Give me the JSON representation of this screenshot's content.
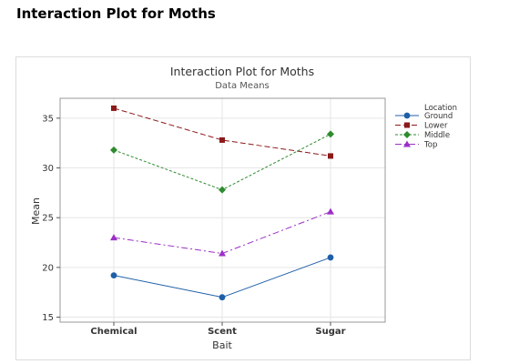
{
  "page_heading": "Interaction Plot for Moths",
  "chart_data": {
    "type": "line",
    "title": "Interaction Plot for Moths",
    "subtitle": "Data Means",
    "xlabel": "Bait",
    "ylabel": "Mean",
    "categories": [
      "Chemical",
      "Scent",
      "Sugar"
    ],
    "yticks": [
      15,
      20,
      25,
      30,
      35
    ],
    "ylim": [
      14.5,
      37
    ],
    "grid": true,
    "legend": {
      "title": "Location",
      "placement": "right"
    },
    "series": [
      {
        "name": "Ground",
        "values": [
          19.2,
          17.0,
          21.0
        ],
        "color": "#1f5fa8",
        "marker": "circle",
        "dash": "solid"
      },
      {
        "name": "Lower",
        "values": [
          36.0,
          32.8,
          31.2
        ],
        "color": "#8b1a1a",
        "marker": "square",
        "dash": "dashed"
      },
      {
        "name": "Middle",
        "values": [
          31.8,
          27.8,
          33.4
        ],
        "color": "#2e8b2e",
        "marker": "diamond",
        "dash": "dotted"
      },
      {
        "name": "Top",
        "values": [
          23.0,
          21.4,
          25.6
        ],
        "color": "#9b30c8",
        "marker": "triangle",
        "dash": "dashdot"
      }
    ]
  }
}
